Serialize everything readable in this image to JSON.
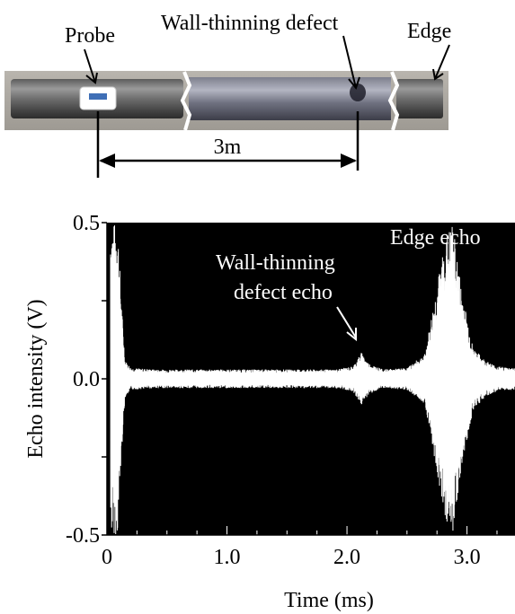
{
  "diagram": {
    "probe_label": "Probe",
    "defect_label": "Wall-thinning defect",
    "edge_label": "Edge",
    "distance_label": "3m"
  },
  "chart_data": {
    "type": "line",
    "title": "",
    "xlabel": "Time (ms)",
    "ylabel": "Echo intensity (V)",
    "xlim": [
      0,
      3.4
    ],
    "ylim": [
      -0.5,
      0.5
    ],
    "x_ticks": [
      0,
      1.0,
      2.0,
      3.0
    ],
    "x_tick_labels": [
      "0",
      "1.0",
      "2.0",
      "3.0"
    ],
    "y_ticks": [
      -0.5,
      0.0,
      0.5
    ],
    "y_tick_labels": [
      "-0.5",
      "0.0",
      "0.5"
    ],
    "background": "#000000",
    "trace_color": "#ffffff",
    "grid": false,
    "series": [
      {
        "x": [
          0.03,
          0.09,
          0.12,
          0.15,
          0.2,
          0.4,
          0.8,
          1.2,
          1.6,
          1.9,
          2.05,
          2.12,
          2.18,
          2.3,
          2.5,
          2.65,
          2.75,
          2.82,
          2.88,
          2.95,
          3.05,
          3.15,
          3.25,
          3.4
        ],
        "envelope": [
          0.5,
          0.5,
          0.25,
          0.06,
          0.035,
          0.03,
          0.03,
          0.03,
          0.03,
          0.03,
          0.04,
          0.085,
          0.05,
          0.03,
          0.035,
          0.08,
          0.3,
          0.45,
          0.5,
          0.3,
          0.1,
          0.06,
          0.04,
          0.035
        ]
      }
    ],
    "annotations": [
      {
        "text": "Wall-thinning defect echo",
        "x": 2.13,
        "y": 0.09
      },
      {
        "text": "Edge echo",
        "x": 2.88,
        "y": 0.45
      }
    ]
  }
}
